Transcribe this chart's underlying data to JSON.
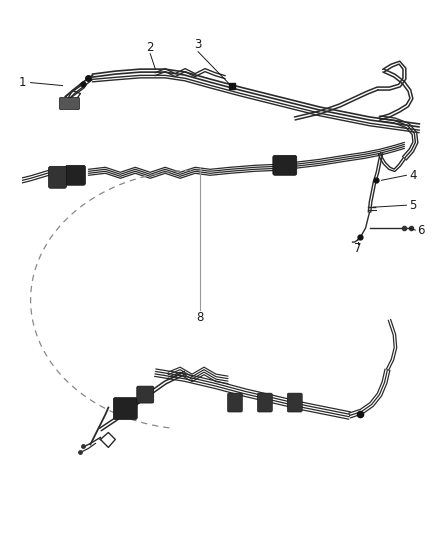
{
  "background_color": "#ffffff",
  "line_color": "#2a2a2a",
  "label_color": "#1a1a1a",
  "label_fontsize": 8.5,
  "fig_width": 4.38,
  "fig_height": 5.33,
  "dpi": 100
}
